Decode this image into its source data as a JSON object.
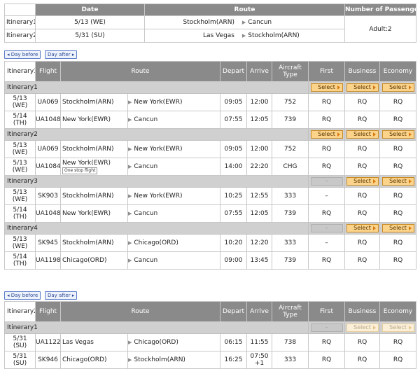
{
  "summary": {
    "headers": [
      "Date",
      "Route",
      "Number of Passengers"
    ],
    "rows": [
      {
        "label": "Itinerary1",
        "date": "5/13 (WE)",
        "from": "Stockholm(ARN)",
        "to": "Cancun"
      },
      {
        "label": "Itinerary2",
        "date": "5/31 (SU)",
        "from": "Las Vegas",
        "to": "Stockholm(ARN)"
      }
    ],
    "passengers": "Adult:2"
  },
  "nav": {
    "day_before": "Day before",
    "day_after": "Day after"
  },
  "columns": [
    "Flight",
    "Route",
    "Depart",
    "Arrive",
    "Aircraft Type",
    "First",
    "Business",
    "Economy"
  ],
  "select_label": "Select",
  "table1": {
    "title": "Itinerary1",
    "groups": [
      {
        "label": "Itinerary1",
        "buttons": [
          "select",
          "select",
          "select"
        ],
        "flights": [
          {
            "date": "5/13 (WE)",
            "flight": "UA069",
            "from": "Stockholm(ARN)",
            "to": "New York(EWR)",
            "depart": "09:05",
            "arrive": "12:00",
            "aircraft": "752",
            "first": "RQ",
            "business": "RQ",
            "economy": "RQ"
          },
          {
            "date": "5/14 (TH)",
            "flight": "UA1048",
            "from": "New York(EWR)",
            "to": "Cancun",
            "depart": "07:55",
            "arrive": "12:05",
            "aircraft": "739",
            "first": "RQ",
            "business": "RQ",
            "economy": "RQ"
          }
        ]
      },
      {
        "label": "Itinerary2",
        "buttons": [
          "select",
          "select",
          "select"
        ],
        "flights": [
          {
            "date": "5/13 (WE)",
            "flight": "UA069",
            "from": "Stockholm(ARN)",
            "to": "New York(EWR)",
            "depart": "09:05",
            "arrive": "12:00",
            "aircraft": "752",
            "first": "RQ",
            "business": "RQ",
            "economy": "RQ"
          },
          {
            "date": "5/13 (WE)",
            "flight": "UA1084",
            "from": "New York(EWR)",
            "note": "One stop flight",
            "to": "Cancun",
            "depart": "14:00",
            "arrive": "22:20",
            "aircraft": "CHG",
            "first": "RQ",
            "business": "RQ",
            "economy": "RQ"
          }
        ]
      },
      {
        "label": "Itinerary3",
        "buttons": [
          "none",
          "select",
          "select"
        ],
        "flights": [
          {
            "date": "5/13 (WE)",
            "flight": "SK903",
            "from": "Stockholm(ARN)",
            "to": "New York(EWR)",
            "depart": "10:25",
            "arrive": "12:55",
            "aircraft": "333",
            "first": "–",
            "business": "RQ",
            "economy": "RQ"
          },
          {
            "date": "5/14 (TH)",
            "flight": "UA1048",
            "from": "New York(EWR)",
            "to": "Cancun",
            "depart": "07:55",
            "arrive": "12:05",
            "aircraft": "739",
            "first": "RQ",
            "business": "RQ",
            "economy": "RQ"
          }
        ]
      },
      {
        "label": "Itinerary4",
        "buttons": [
          "none",
          "select",
          "select"
        ],
        "flights": [
          {
            "date": "5/13 (WE)",
            "flight": "SK945",
            "from": "Stockholm(ARN)",
            "to": "Chicago(ORD)",
            "depart": "10:20",
            "arrive": "12:20",
            "aircraft": "333",
            "first": "–",
            "business": "RQ",
            "economy": "RQ"
          },
          {
            "date": "5/14 (TH)",
            "flight": "UA1198",
            "from": "Chicago(ORD)",
            "to": "Cancun",
            "depart": "09:00",
            "arrive": "13:45",
            "aircraft": "739",
            "first": "RQ",
            "business": "RQ",
            "economy": "RQ"
          }
        ]
      }
    ]
  },
  "table2": {
    "title": "Itinerary2",
    "groups": [
      {
        "label": "Itinerary1",
        "buttons": [
          "none",
          "disabled",
          "disabled"
        ],
        "flights": [
          {
            "date": "5/31 (SU)",
            "flight": "UA1122",
            "from": "Las Vegas",
            "to": "Chicago(ORD)",
            "depart": "06:15",
            "arrive": "11:55",
            "aircraft": "738",
            "first": "RQ",
            "business": "RQ",
            "economy": "RQ"
          },
          {
            "date": "5/31 (SU)",
            "flight": "SK946",
            "from": "Chicago(ORD)",
            "to": "Stockholm(ARN)",
            "depart": "16:25",
            "arrive": "07:50 +1",
            "aircraft": "333",
            "first": "RQ",
            "business": "RQ",
            "economy": "RQ"
          }
        ]
      }
    ]
  },
  "colors": {
    "header_bg": "#8a8a8a",
    "group_bg": "#d0d0d0",
    "select_bg": "#fbd38a",
    "select_border": "#c98b24",
    "nav_border": "#5a7cc8"
  }
}
